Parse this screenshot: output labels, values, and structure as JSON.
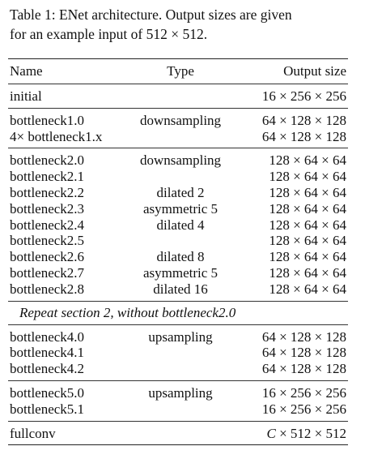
{
  "caption": {
    "line1": "Table 1: ENet architecture. Output sizes are given",
    "line2": "for an example input of 512 × 512."
  },
  "table": {
    "headers": {
      "name": "Name",
      "type": "Type",
      "size": "Output size"
    },
    "sections": [
      {
        "rows": [
          {
            "name": "initial",
            "type": "",
            "size": "16 × 256 × 256"
          }
        ]
      },
      {
        "rows": [
          {
            "name": "bottleneck1.0",
            "type": "downsampling",
            "size": "64 × 128 × 128"
          },
          {
            "name": "4× bottleneck1.x",
            "type": "",
            "size": "64 × 128 × 128"
          }
        ]
      },
      {
        "rows": [
          {
            "name": "bottleneck2.0",
            "type": "downsampling",
            "size": "128 × 64 × 64"
          },
          {
            "name": "bottleneck2.1",
            "type": "",
            "size": "128 × 64 × 64"
          },
          {
            "name": "bottleneck2.2",
            "type": "dilated 2",
            "size": "128 × 64 × 64"
          },
          {
            "name": "bottleneck2.3",
            "type": "asymmetric 5",
            "size": "128 × 64 × 64"
          },
          {
            "name": "bottleneck2.4",
            "type": "dilated 4",
            "size": "128 × 64 × 64"
          },
          {
            "name": "bottleneck2.5",
            "type": "",
            "size": "128 × 64 × 64"
          },
          {
            "name": "bottleneck2.6",
            "type": "dilated 8",
            "size": "128 × 64 × 64"
          },
          {
            "name": "bottleneck2.7",
            "type": "asymmetric 5",
            "size": "128 × 64 × 64"
          },
          {
            "name": "bottleneck2.8",
            "type": "dilated 16",
            "size": "128 × 64 × 64"
          }
        ]
      }
    ],
    "repeat_note": "Repeat section 2, without bottleneck2.0",
    "sections_after": [
      {
        "rows": [
          {
            "name": "bottleneck4.0",
            "type": "upsampling",
            "size": "64 × 128 × 128"
          },
          {
            "name": "bottleneck4.1",
            "type": "",
            "size": "64 × 128 × 128"
          },
          {
            "name": "bottleneck4.2",
            "type": "",
            "size": "64 × 128 × 128"
          }
        ]
      },
      {
        "rows": [
          {
            "name": "bottleneck5.0",
            "type": "upsampling",
            "size": "16 × 256 × 256"
          },
          {
            "name": "bottleneck5.1",
            "type": "",
            "size": "16 × 256 × 256"
          }
        ]
      },
      {
        "rows": [
          {
            "name": "fullconv",
            "type": "",
            "size": "C × 512 × 512"
          }
        ]
      }
    ]
  }
}
